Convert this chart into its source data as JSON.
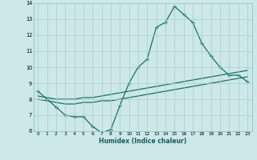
{
  "xlabel": "Humidex (Indice chaleur)",
  "bg_color": "#cce8e8",
  "grid_color": "#aacccc",
  "line_color": "#1a7060",
  "xlim": [
    -0.5,
    23.5
  ],
  "ylim": [
    6,
    14
  ],
  "xticks": [
    0,
    1,
    2,
    3,
    4,
    5,
    6,
    7,
    8,
    9,
    10,
    11,
    12,
    13,
    14,
    15,
    16,
    17,
    18,
    19,
    20,
    21,
    22,
    23
  ],
  "yticks": [
    6,
    7,
    8,
    9,
    10,
    11,
    12,
    13,
    14
  ],
  "hours": [
    0,
    1,
    2,
    3,
    4,
    5,
    6,
    7,
    8,
    9,
    10,
    11,
    12,
    13,
    14,
    15,
    16,
    17,
    18,
    19,
    20,
    21,
    22,
    23
  ],
  "line1": [
    8.5,
    8.0,
    7.5,
    7.0,
    6.9,
    6.9,
    6.3,
    5.9,
    6.1,
    7.6,
    9.0,
    10.0,
    10.5,
    12.5,
    12.8,
    13.8,
    13.3,
    12.8,
    11.5,
    10.7,
    10.0,
    9.5,
    9.5,
    9.1
  ],
  "line2": [
    8.2,
    8.1,
    8.0,
    8.0,
    8.0,
    8.1,
    8.1,
    8.2,
    8.3,
    8.4,
    8.5,
    8.6,
    8.7,
    8.8,
    8.9,
    9.0,
    9.1,
    9.2,
    9.3,
    9.4,
    9.5,
    9.6,
    9.7,
    9.8
  ],
  "line3": [
    8.0,
    7.9,
    7.8,
    7.7,
    7.7,
    7.8,
    7.8,
    7.9,
    7.9,
    8.0,
    8.1,
    8.2,
    8.3,
    8.4,
    8.5,
    8.6,
    8.7,
    8.8,
    8.9,
    9.0,
    9.1,
    9.2,
    9.3,
    9.4
  ]
}
